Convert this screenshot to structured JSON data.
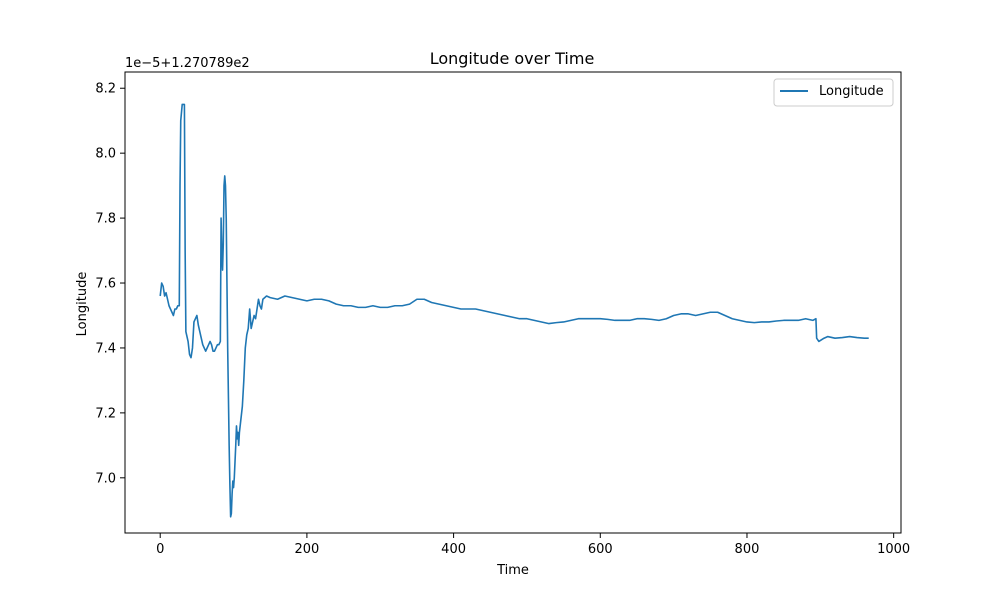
{
  "chart_data": {
    "type": "line",
    "title": "Longitude over Time",
    "xlabel": "Time",
    "ylabel": "Longitude",
    "offset_text": "1e−5+1.270789e2",
    "xlim": [
      -48,
      1010
    ],
    "ylim": [
      6.83,
      8.25
    ],
    "xticks": [
      0,
      200,
      400,
      600,
      800,
      1000
    ],
    "xtick_labels": [
      "0",
      "200",
      "400",
      "600",
      "800",
      "1000"
    ],
    "yticks": [
      7.0,
      7.2,
      7.4,
      7.6,
      7.8,
      8.0,
      8.2
    ],
    "ytick_labels": [
      "7.0",
      "7.2",
      "7.4",
      "7.6",
      "7.8",
      "8.0",
      "8.2"
    ],
    "grid": false,
    "legend_position": "top-right",
    "series": [
      {
        "name": "Longitude",
        "color": "#1f77b4",
        "points": [
          [
            0,
            7.56
          ],
          [
            2,
            7.6
          ],
          [
            4,
            7.59
          ],
          [
            6,
            7.56
          ],
          [
            8,
            7.57
          ],
          [
            10,
            7.55
          ],
          [
            12,
            7.53
          ],
          [
            14,
            7.52
          ],
          [
            16,
            7.51
          ],
          [
            18,
            7.5
          ],
          [
            20,
            7.52
          ],
          [
            22,
            7.52
          ],
          [
            24,
            7.53
          ],
          [
            26,
            7.53
          ],
          [
            27,
            7.9
          ],
          [
            28,
            8.1
          ],
          [
            30,
            8.15
          ],
          [
            33,
            8.15
          ],
          [
            34,
            7.7
          ],
          [
            35,
            7.45
          ],
          [
            38,
            7.42
          ],
          [
            40,
            7.38
          ],
          [
            42,
            7.37
          ],
          [
            44,
            7.4
          ],
          [
            46,
            7.48
          ],
          [
            48,
            7.49
          ],
          [
            50,
            7.5
          ],
          [
            52,
            7.47
          ],
          [
            54,
            7.45
          ],
          [
            56,
            7.43
          ],
          [
            58,
            7.41
          ],
          [
            60,
            7.4
          ],
          [
            62,
            7.39
          ],
          [
            64,
            7.4
          ],
          [
            66,
            7.41
          ],
          [
            68,
            7.42
          ],
          [
            70,
            7.41
          ],
          [
            72,
            7.39
          ],
          [
            74,
            7.39
          ],
          [
            76,
            7.4
          ],
          [
            78,
            7.41
          ],
          [
            80,
            7.41
          ],
          [
            82,
            7.42
          ],
          [
            83,
            7.8
          ],
          [
            84,
            7.7
          ],
          [
            85,
            7.64
          ],
          [
            86,
            7.72
          ],
          [
            87,
            7.9
          ],
          [
            88,
            7.93
          ],
          [
            89,
            7.9
          ],
          [
            90,
            7.8
          ],
          [
            91,
            7.6
          ],
          [
            92,
            7.4
          ],
          [
            93,
            7.25
          ],
          [
            94,
            7.1
          ],
          [
            95,
            6.98
          ],
          [
            96,
            6.88
          ],
          [
            97,
            6.89
          ],
          [
            98,
            6.95
          ],
          [
            99,
            6.99
          ],
          [
            100,
            6.97
          ],
          [
            101,
            7.0
          ],
          [
            102,
            7.05
          ],
          [
            103,
            7.1
          ],
          [
            104,
            7.16
          ],
          [
            105,
            7.12
          ],
          [
            106,
            7.14
          ],
          [
            107,
            7.1
          ],
          [
            108,
            7.14
          ],
          [
            110,
            7.18
          ],
          [
            112,
            7.22
          ],
          [
            114,
            7.3
          ],
          [
            116,
            7.4
          ],
          [
            118,
            7.44
          ],
          [
            120,
            7.46
          ],
          [
            122,
            7.52
          ],
          [
            124,
            7.46
          ],
          [
            126,
            7.48
          ],
          [
            128,
            7.5
          ],
          [
            130,
            7.49
          ],
          [
            132,
            7.52
          ],
          [
            134,
            7.55
          ],
          [
            136,
            7.53
          ],
          [
            138,
            7.52
          ],
          [
            140,
            7.55
          ],
          [
            145,
            7.56
          ],
          [
            150,
            7.555
          ],
          [
            160,
            7.55
          ],
          [
            170,
            7.56
          ],
          [
            180,
            7.555
          ],
          [
            190,
            7.55
          ],
          [
            200,
            7.545
          ],
          [
            210,
            7.55
          ],
          [
            220,
            7.55
          ],
          [
            230,
            7.545
          ],
          [
            240,
            7.535
          ],
          [
            250,
            7.53
          ],
          [
            260,
            7.53
          ],
          [
            270,
            7.525
          ],
          [
            280,
            7.525
          ],
          [
            290,
            7.53
          ],
          [
            300,
            7.525
          ],
          [
            310,
            7.525
          ],
          [
            320,
            7.53
          ],
          [
            330,
            7.53
          ],
          [
            340,
            7.535
          ],
          [
            350,
            7.55
          ],
          [
            360,
            7.55
          ],
          [
            370,
            7.54
          ],
          [
            380,
            7.535
          ],
          [
            390,
            7.53
          ],
          [
            400,
            7.525
          ],
          [
            410,
            7.52
          ],
          [
            420,
            7.52
          ],
          [
            430,
            7.52
          ],
          [
            440,
            7.515
          ],
          [
            450,
            7.51
          ],
          [
            460,
            7.505
          ],
          [
            470,
            7.5
          ],
          [
            480,
            7.495
          ],
          [
            490,
            7.49
          ],
          [
            500,
            7.49
          ],
          [
            510,
            7.485
          ],
          [
            520,
            7.48
          ],
          [
            530,
            7.475
          ],
          [
            540,
            7.478
          ],
          [
            550,
            7.48
          ],
          [
            560,
            7.485
          ],
          [
            570,
            7.49
          ],
          [
            580,
            7.49
          ],
          [
            590,
            7.49
          ],
          [
            600,
            7.49
          ],
          [
            610,
            7.488
          ],
          [
            620,
            7.485
          ],
          [
            630,
            7.485
          ],
          [
            640,
            7.485
          ],
          [
            650,
            7.49
          ],
          [
            660,
            7.49
          ],
          [
            670,
            7.488
          ],
          [
            680,
            7.485
          ],
          [
            690,
            7.49
          ],
          [
            700,
            7.5
          ],
          [
            710,
            7.505
          ],
          [
            720,
            7.505
          ],
          [
            730,
            7.5
          ],
          [
            740,
            7.505
          ],
          [
            750,
            7.51
          ],
          [
            760,
            7.51
          ],
          [
            770,
            7.5
          ],
          [
            780,
            7.49
          ],
          [
            790,
            7.485
          ],
          [
            800,
            7.48
          ],
          [
            810,
            7.478
          ],
          [
            820,
            7.48
          ],
          [
            830,
            7.48
          ],
          [
            840,
            7.483
          ],
          [
            850,
            7.485
          ],
          [
            860,
            7.485
          ],
          [
            870,
            7.485
          ],
          [
            880,
            7.49
          ],
          [
            890,
            7.485
          ],
          [
            894,
            7.49
          ],
          [
            895,
            7.43
          ],
          [
            898,
            7.42
          ],
          [
            905,
            7.43
          ],
          [
            910,
            7.435
          ],
          [
            920,
            7.43
          ],
          [
            930,
            7.432
          ],
          [
            940,
            7.435
          ],
          [
            950,
            7.432
          ],
          [
            960,
            7.43
          ],
          [
            966,
            7.43
          ]
        ]
      }
    ]
  }
}
